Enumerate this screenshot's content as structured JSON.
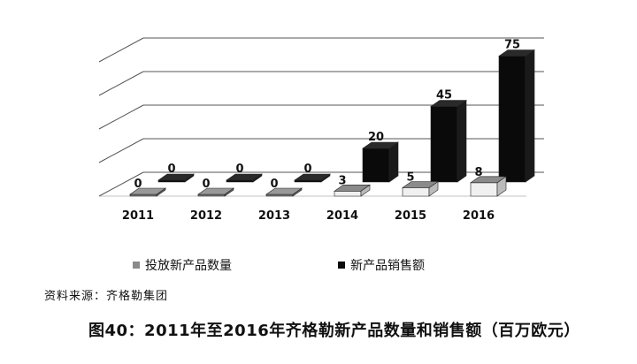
{
  "chart_data": {
    "type": "bar",
    "categories": [
      "2011",
      "2012",
      "2013",
      "2014",
      "2015",
      "2016"
    ],
    "series": [
      {
        "name": "投放新产品数量",
        "values": [
          0,
          0,
          0,
          3,
          5,
          8
        ],
        "color": "#8a8a8a"
      },
      {
        "name": "新产品销售额",
        "values": [
          0,
          0,
          0,
          20,
          45,
          75
        ],
        "color": "#0a0a0a"
      }
    ],
    "ylim": [
      0,
      80
    ],
    "grid": true,
    "legend_position": "bottom"
  },
  "source": "资料来源：齐格勒集团",
  "caption": "图40：2011年至2016年齐格勒新产品数量和销售额（百万欧元）"
}
